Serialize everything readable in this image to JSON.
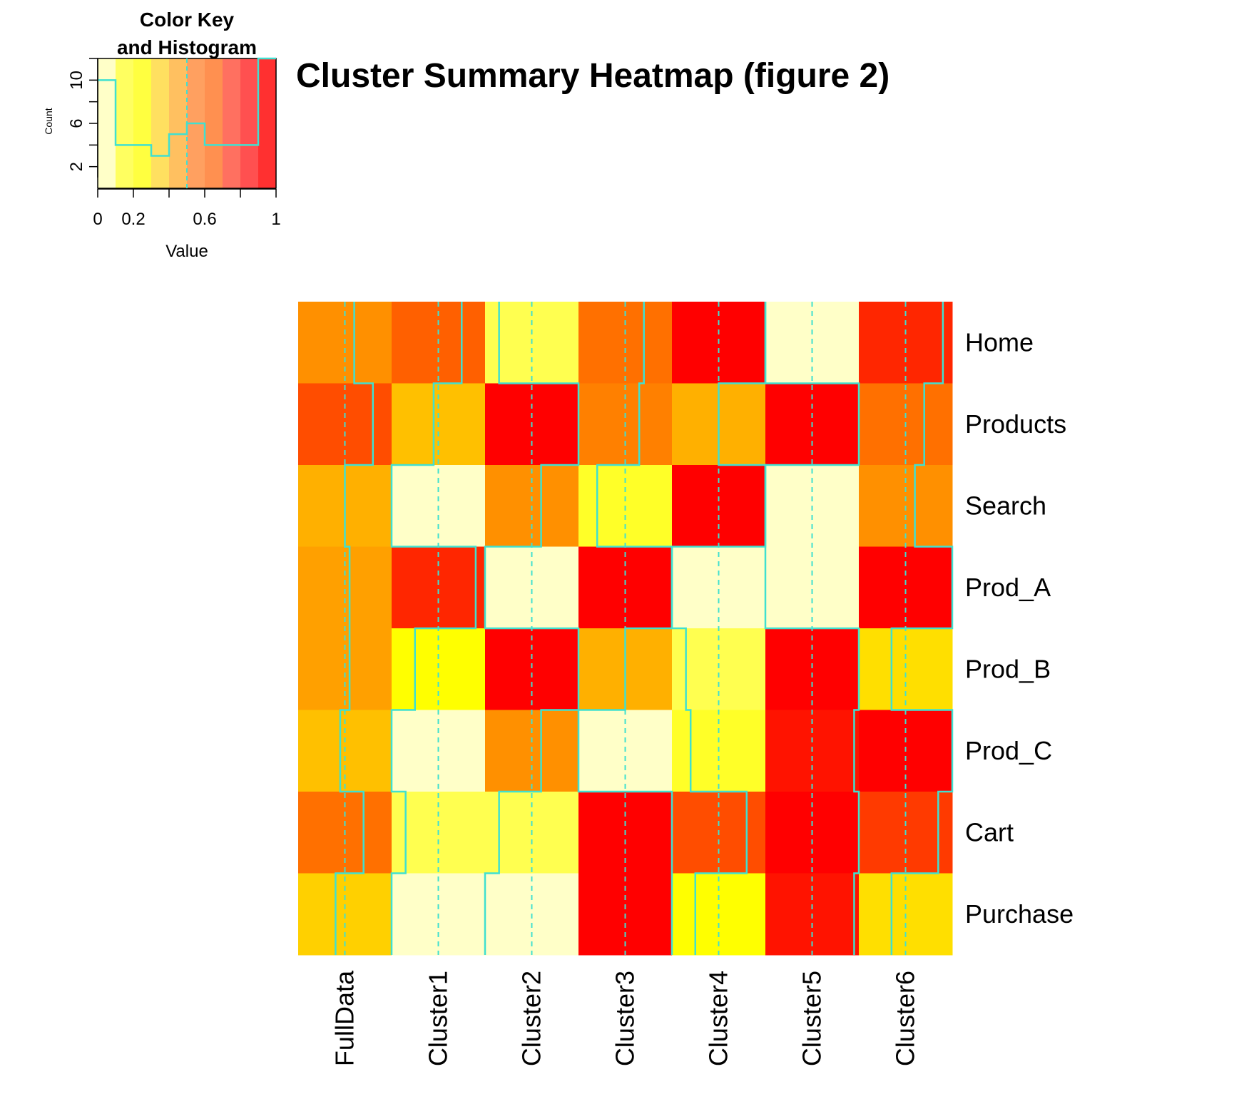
{
  "chart_data": {
    "type": "heatmap",
    "title": "Cluster Summary Heatmap (figure 2)",
    "rows": [
      "Home",
      "Products",
      "Search",
      "Prod_A",
      "Prod_B",
      "Prod_C",
      "Cart",
      "Purchase"
    ],
    "columns": [
      "FullData",
      "Cluster1",
      "Cluster2",
      "Cluster3",
      "Cluster4",
      "Cluster5",
      "Cluster6"
    ],
    "values": [
      [
        0.6,
        0.75,
        0.15,
        0.7,
        1.0,
        0.0,
        0.9
      ],
      [
        0.8,
        0.45,
        1.0,
        0.65,
        0.5,
        1.0,
        0.7
      ],
      [
        0.5,
        0.0,
        0.6,
        0.2,
        1.0,
        0.0,
        0.6
      ],
      [
        0.55,
        0.9,
        0.0,
        1.0,
        0.0,
        0.0,
        1.0
      ],
      [
        0.55,
        0.25,
        1.0,
        0.5,
        0.15,
        1.0,
        0.35
      ],
      [
        0.45,
        0.0,
        0.6,
        0.0,
        0.2,
        0.95,
        1.0
      ],
      [
        0.7,
        0.15,
        0.15,
        1.0,
        0.8,
        1.0,
        0.85
      ],
      [
        0.4,
        0.0,
        0.0,
        1.0,
        0.25,
        0.95,
        0.35
      ]
    ],
    "trace_color": "#40E0D0",
    "color_scale": [
      "#FFFFC8",
      "#FFFF00",
      "#FFB000",
      "#FF6000",
      "#FF0000"
    ],
    "color_key": {
      "title_line1": "Color Key",
      "title_line2": "and Histogram",
      "xlabel": "Value",
      "ylabel": "Count",
      "x_ticks": [
        "0",
        "0.2",
        "0.6",
        "1"
      ],
      "x_tick_values": [
        0,
        0.2,
        0.6,
        1
      ],
      "y_ticks": [
        "2",
        "6",
        "10"
      ],
      "y_tick_values": [
        2,
        6,
        10
      ],
      "xlim": [
        0,
        1
      ],
      "ylim": [
        0,
        12
      ],
      "histogram_counts": [
        10,
        4,
        4,
        3,
        5,
        6,
        4,
        4,
        4,
        12
      ],
      "color_bands": [
        "#FFFFC8",
        "#FFFF60",
        "#FFFF40",
        "#FFE060",
        "#FFC060",
        "#FFA060",
        "#FF9050",
        "#FF7060",
        "#FF5050",
        "#FF3030"
      ]
    }
  }
}
